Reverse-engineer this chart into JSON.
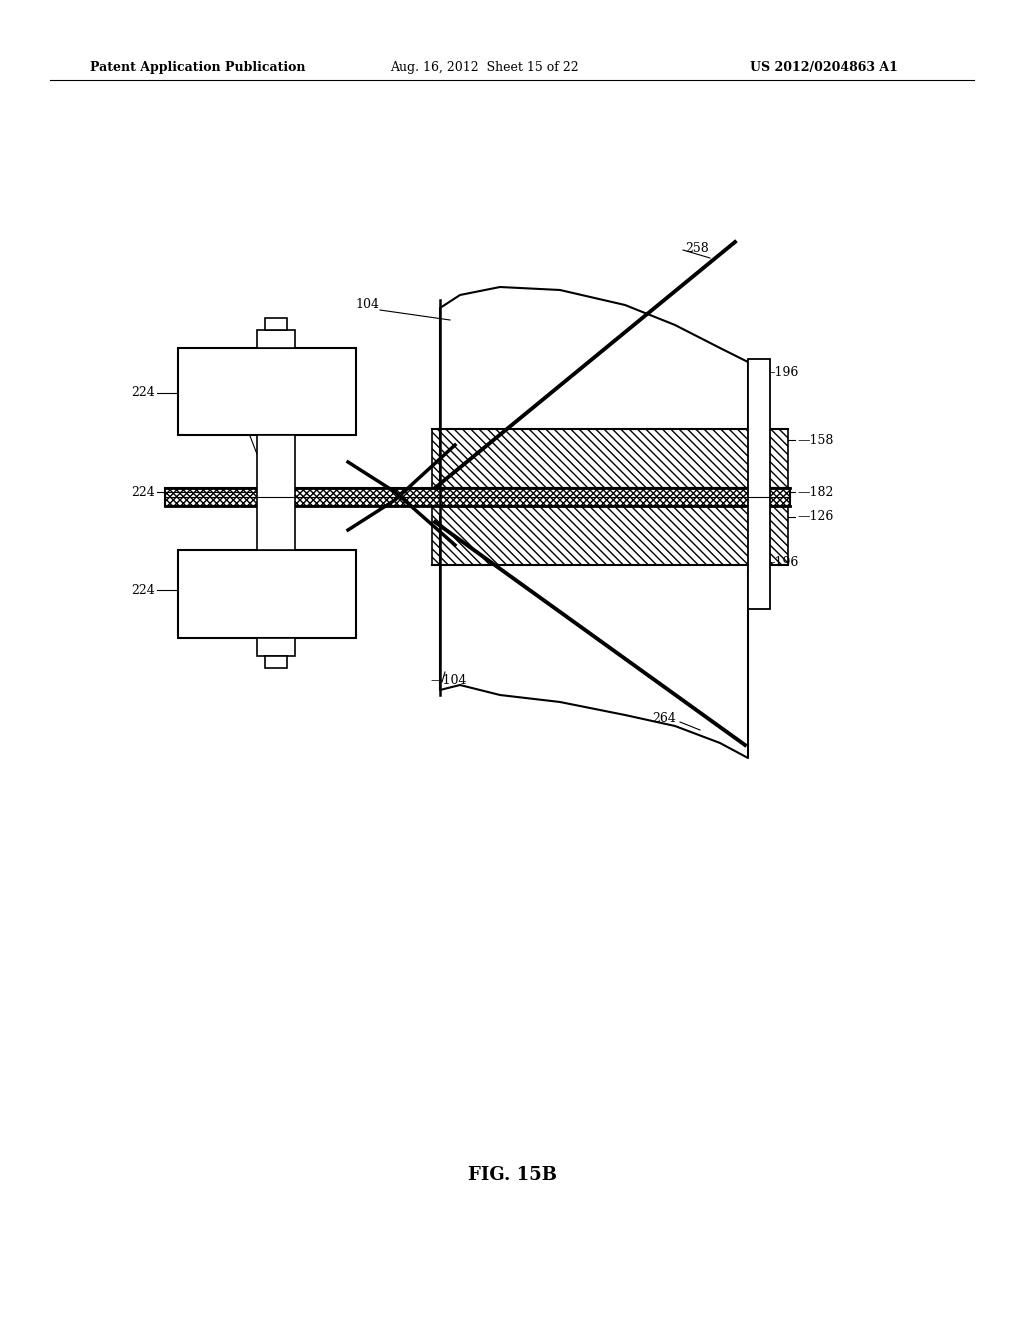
{
  "background_color": "#ffffff",
  "fig_width": 10.24,
  "fig_height": 13.2,
  "dpi": 100,
  "header_text": "Patent Application Publication",
  "header_date": "Aug. 16, 2012  Sheet 15 of 22",
  "header_patent": "US 2012/0204863 A1",
  "figure_label": "FIG. 15B",
  "line_color": "#000000",
  "label_fontsize": 9,
  "header_fontsize": 9,
  "fig_label_fontsize": 13
}
